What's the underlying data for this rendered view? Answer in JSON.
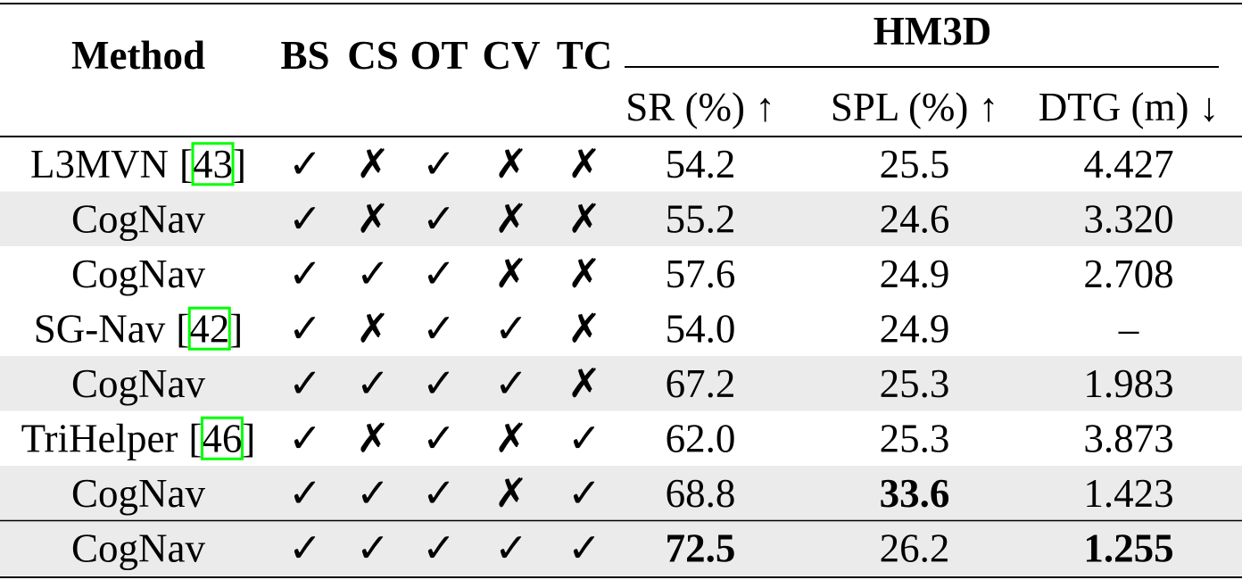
{
  "header": {
    "method": "Method",
    "flags": [
      "BS",
      "CS",
      "OT",
      "CV",
      "TC"
    ],
    "group": "HM3D",
    "metrics": [
      "SR (%) ↑",
      "SPL (%) ↑",
      "DTG (m) ↓"
    ]
  },
  "rows": [
    {
      "method": "L3MVN",
      "cite": "[43]",
      "flags": [
        "✓",
        "✗",
        "✓",
        "✗",
        "✗"
      ],
      "values": [
        "54.2",
        "25.5",
        "4.427"
      ],
      "bold": [
        false,
        false,
        false
      ],
      "shaded": false
    },
    {
      "method": "CogNav",
      "flags": [
        "✓",
        "✗",
        "✓",
        "✗",
        "✗"
      ],
      "values": [
        "55.2",
        "24.6",
        "3.320"
      ],
      "bold": [
        false,
        false,
        false
      ],
      "shaded": true
    },
    {
      "method": "CogNav",
      "flags": [
        "✓",
        "✓",
        "✓",
        "✗",
        "✗"
      ],
      "values": [
        "57.6",
        "24.9",
        "2.708"
      ],
      "bold": [
        false,
        false,
        false
      ],
      "shaded": false
    },
    {
      "method": "SG-Nav",
      "cite": "[42]",
      "flags": [
        "✓",
        "✗",
        "✓",
        "✓",
        "✗"
      ],
      "values": [
        "54.0",
        "24.9",
        "–"
      ],
      "bold": [
        false,
        false,
        false
      ],
      "shaded": false
    },
    {
      "method": "CogNav",
      "flags": [
        "✓",
        "✓",
        "✓",
        "✓",
        "✗"
      ],
      "values": [
        "67.2",
        "25.3",
        "1.983"
      ],
      "bold": [
        false,
        false,
        false
      ],
      "shaded": true
    },
    {
      "method": "TriHelper",
      "cite": "[46]",
      "flags": [
        "✓",
        "✗",
        "✓",
        "✗",
        "✓"
      ],
      "values": [
        "62.0",
        "25.3",
        "3.873"
      ],
      "bold": [
        false,
        false,
        false
      ],
      "shaded": false
    },
    {
      "method": "CogNav",
      "flags": [
        "✓",
        "✓",
        "✓",
        "✗",
        "✓"
      ],
      "values": [
        "68.8",
        "33.6",
        "1.423"
      ],
      "bold": [
        false,
        true,
        false
      ],
      "shaded": true
    },
    {
      "method": "CogNav",
      "flags": [
        "✓",
        "✓",
        "✓",
        "✓",
        "✓"
      ],
      "values": [
        "72.5",
        "26.2",
        "1.255"
      ],
      "bold": [
        true,
        false,
        true
      ],
      "shaded": true
    }
  ]
}
